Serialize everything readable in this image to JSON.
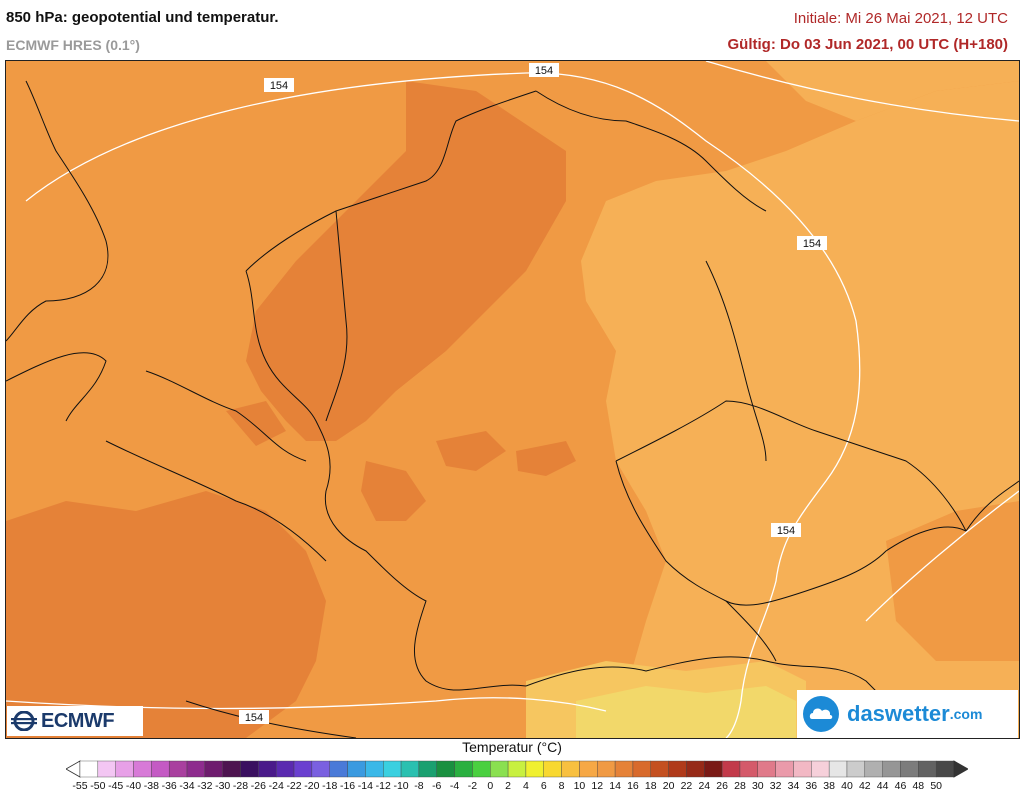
{
  "header": {
    "title": "850 hPa: geopotential und temperatur.",
    "model": "ECMWF HRES (0.1°)",
    "initial": "Initiale: Mi 26 Mai 2021, 12 UTC",
    "valid": "Gültig: Do 03 Jun 2021, 00 UTC (H+180)"
  },
  "map": {
    "contour_value": "154",
    "colors": {
      "temp_8": "#f6b056",
      "temp_10": "#f09a44",
      "temp_12": "#e58238",
      "border": "#111111",
      "contour": "#ffffff"
    }
  },
  "logos": {
    "ecmwf": "ECMWF",
    "daswetter": "daswetter",
    "daswetter_tld": ".com"
  },
  "legend": {
    "title": "Temperatur (°C)",
    "labels": [
      "-55",
      "-50",
      "-45",
      "-40",
      "-38",
      "-36",
      "-34",
      "-32",
      "-30",
      "-28",
      "-26",
      "-24",
      "-22",
      "-20",
      "-18",
      "-16",
      "-14",
      "-12",
      "-10",
      "-8",
      "-6",
      "-4",
      "-2",
      "0",
      "2",
      "4",
      "6",
      "8",
      "10",
      "12",
      "14",
      "16",
      "18",
      "20",
      "22",
      "24",
      "26",
      "28",
      "30",
      "32",
      "34",
      "36",
      "38",
      "40",
      "42",
      "44",
      "46",
      "48",
      "50"
    ],
    "colors": [
      "#ffffff",
      "#f3c6f3",
      "#e7a0e7",
      "#d77ad7",
      "#c45ac4",
      "#a9409f",
      "#8e2c8e",
      "#6e1c6e",
      "#4e1450",
      "#3a1060",
      "#4a1a8a",
      "#5a2ab0",
      "#6a40d0",
      "#7a60e0",
      "#4a7ad8",
      "#3a9ae0",
      "#3ab8e8",
      "#3ad0e0",
      "#2ac0b0",
      "#1aa070",
      "#1a9040",
      "#2ab040",
      "#4ad040",
      "#8ae050",
      "#c8f040",
      "#f0f030",
      "#f8d830",
      "#f8c040",
      "#f6a846",
      "#f09a44",
      "#e58238",
      "#d86a2c",
      "#c45020",
      "#b03a1a",
      "#962a18",
      "#7a1a16",
      "#c23a4a",
      "#d45a6a",
      "#e07a8a",
      "#ea9aaa",
      "#f2b8c4",
      "#f6d0da",
      "#e6e6e6",
      "#cccccc",
      "#b0b0b0",
      "#969696",
      "#7c7c7c",
      "#626262",
      "#484848"
    ]
  }
}
